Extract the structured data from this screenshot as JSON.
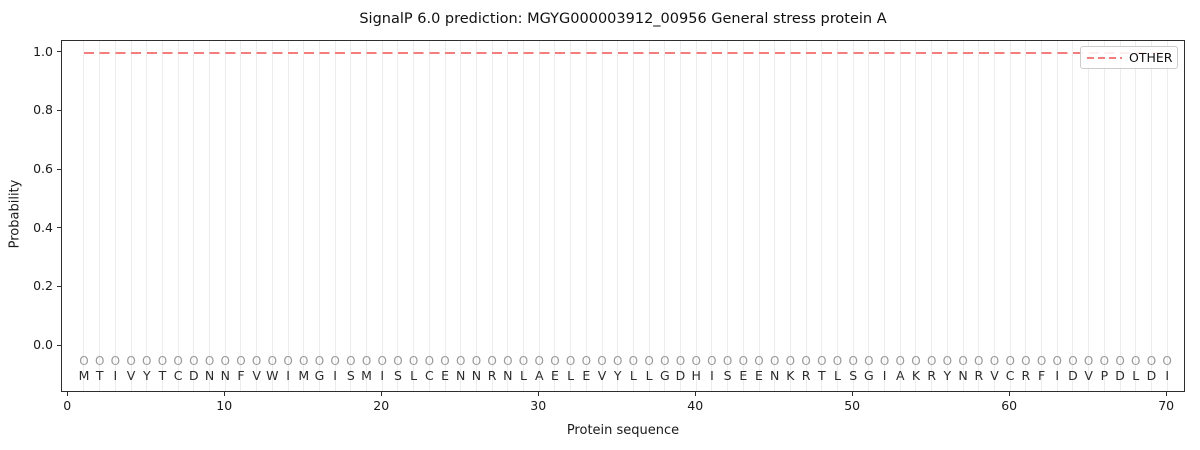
{
  "chart_data": {
    "type": "line",
    "title": "SignalP 6.0 prediction: MGYG000003912_00956 General stress protein A",
    "xlabel": "Protein sequence",
    "ylabel": "Probability",
    "xlim": [
      -0.4,
      71.2
    ],
    "ylim": [
      -0.16,
      1.04
    ],
    "x_ticks": [
      0,
      10,
      20,
      30,
      40,
      50,
      60,
      70
    ],
    "y_ticks": [
      "0.0",
      "0.2",
      "0.4",
      "0.6",
      "0.8",
      "1.0"
    ],
    "grid": "vertical line at every sequence position",
    "gridline_color": "#ececec",
    "legend_position": "upper right",
    "series": [
      {
        "name": "OTHER",
        "style": "dashed",
        "color": "#f47d7d",
        "x": [
          1,
          2,
          3,
          4,
          5,
          6,
          7,
          8,
          9,
          10,
          11,
          12,
          13,
          14,
          15,
          16,
          17,
          18,
          19,
          20,
          21,
          22,
          23,
          24,
          25,
          26,
          27,
          28,
          29,
          30,
          31,
          32,
          33,
          34,
          35,
          36,
          37,
          38,
          39,
          40,
          41,
          42,
          43,
          44,
          45,
          46,
          47,
          48,
          49,
          50,
          51,
          52,
          53,
          54,
          55,
          56,
          57,
          58,
          59,
          60,
          61,
          62,
          63,
          64,
          65,
          66,
          67,
          68,
          69,
          70
        ],
        "values": [
          1.0,
          1.0,
          1.0,
          1.0,
          1.0,
          1.0,
          1.0,
          1.0,
          1.0,
          1.0,
          1.0,
          1.0,
          1.0,
          1.0,
          1.0,
          1.0,
          1.0,
          1.0,
          1.0,
          1.0,
          1.0,
          1.0,
          1.0,
          1.0,
          1.0,
          1.0,
          1.0,
          1.0,
          1.0,
          1.0,
          1.0,
          1.0,
          1.0,
          1.0,
          1.0,
          1.0,
          1.0,
          1.0,
          1.0,
          1.0,
          1.0,
          1.0,
          1.0,
          1.0,
          1.0,
          1.0,
          1.0,
          1.0,
          1.0,
          1.0,
          1.0,
          1.0,
          1.0,
          1.0,
          1.0,
          1.0,
          1.0,
          1.0,
          1.0,
          1.0,
          1.0,
          1.0,
          1.0,
          1.0,
          1.0,
          1.0,
          1.0,
          1.0,
          1.0,
          1.0
        ]
      }
    ],
    "sequence": "MTIVYTCDNNFVWIMGISMISLCENNRNLAELEVYLLGDHISEENKRTLSGIAKRYNRVCRFIDVPDLDI",
    "n_positions": 70,
    "per_position_marker": "O",
    "marker_color": "#9a9a9a",
    "marker_y": -0.051,
    "letters_y": -0.099
  }
}
